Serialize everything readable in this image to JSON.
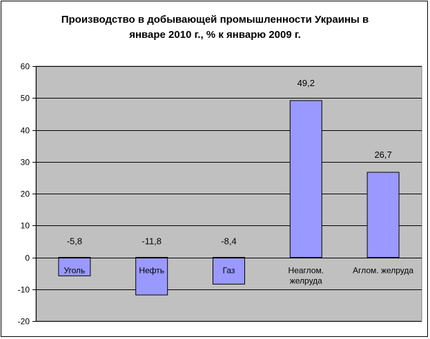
{
  "chart_data": {
    "type": "bar",
    "title_lines": [
      "Производство в добывающей промышленности Украины в",
      "январе 2010 г., % к январю 2009 г."
    ],
    "categories": [
      "Уголь",
      "Нефть",
      "Газ",
      "Неаглом. желруда",
      "Аглом. желруда"
    ],
    "category_lines": [
      [
        "Уголь"
      ],
      [
        "Нефть"
      ],
      [
        "Газ"
      ],
      [
        "Неаглом.",
        "желруда"
      ],
      [
        "Аглом. желруда"
      ]
    ],
    "values": [
      -5.8,
      -11.8,
      -8.4,
      49.2,
      26.7
    ],
    "data_labels": [
      "-5,8",
      "-11,8",
      "-8,4",
      "49,2",
      "26,7"
    ],
    "ylim": [
      -20,
      60
    ],
    "yticks": [
      -20,
      -10,
      0,
      10,
      20,
      30,
      40,
      50,
      60
    ],
    "ytick_labels": [
      "-20",
      "-10",
      "0",
      "10",
      "20",
      "30",
      "40",
      "50",
      "60"
    ],
    "grid": true,
    "legend": false,
    "bar_color": "#9999ff",
    "plot_background": "#c0c0c0"
  }
}
